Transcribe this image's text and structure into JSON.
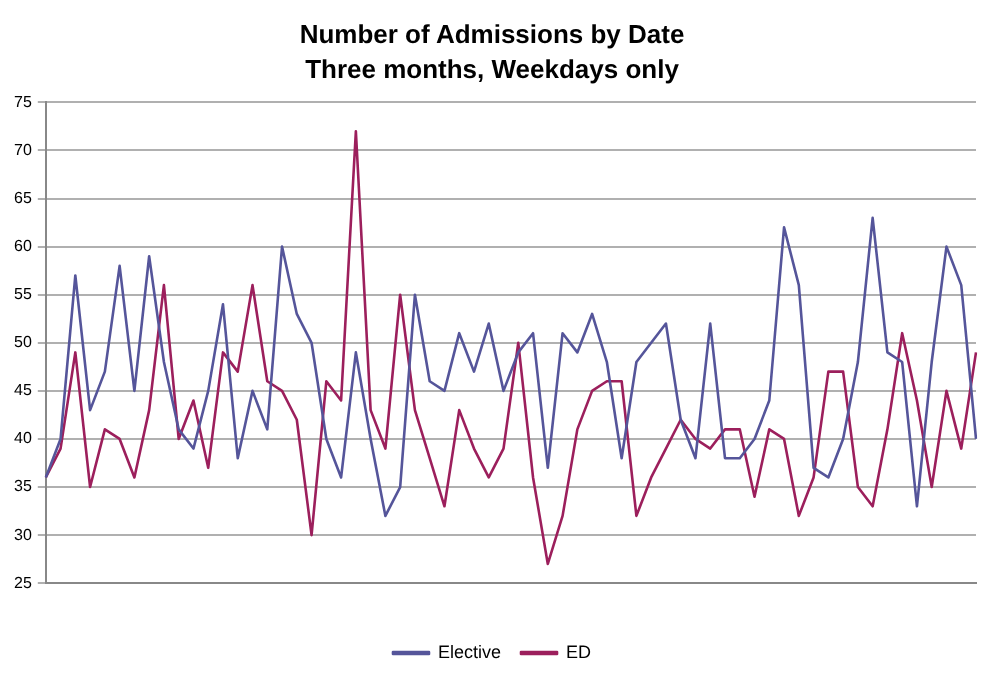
{
  "chart_data": {
    "type": "line",
    "title": "Number of Admissions by Date",
    "subtitle": "Three months, Weekdays only",
    "categories": [
      null,
      null,
      null,
      null,
      null,
      null,
      null,
      null,
      null,
      null,
      null,
      null,
      null,
      null,
      null,
      null,
      null,
      null,
      null,
      null,
      null,
      null,
      null,
      null,
      null,
      null,
      null,
      null,
      null,
      null,
      null,
      null,
      null,
      null,
      null,
      null,
      null,
      null,
      null,
      null,
      null,
      null,
      null,
      null,
      null,
      null,
      null,
      null,
      null,
      null,
      null,
      null,
      null,
      null,
      null,
      null,
      null,
      null,
      null,
      null,
      null,
      null,
      null,
      null
    ],
    "series": [
      {
        "name": "Elective",
        "color": "#55559a",
        "values": [
          36,
          40,
          57,
          43,
          47,
          58,
          45,
          59,
          48,
          41,
          39,
          45,
          54,
          38,
          45,
          41,
          60,
          53,
          50,
          40,
          36,
          49,
          40,
          32,
          35,
          55,
          46,
          45,
          51,
          47,
          52,
          45,
          49,
          51,
          37,
          51,
          49,
          53,
          48,
          38,
          48,
          50,
          52,
          42,
          38,
          52,
          38,
          38,
          40,
          44,
          62,
          56,
          37,
          36,
          40,
          48,
          63,
          49,
          48,
          33,
          48,
          60,
          56,
          40
        ]
      },
      {
        "name": "ED",
        "color": "#9c1f5c",
        "values": [
          36,
          39,
          49,
          35,
          41,
          40,
          36,
          43,
          56,
          40,
          44,
          37,
          49,
          47,
          56,
          46,
          45,
          42,
          30,
          46,
          44,
          72,
          43,
          39,
          55,
          43,
          38,
          33,
          43,
          39,
          36,
          39,
          50,
          36,
          27,
          32,
          41,
          45,
          46,
          46,
          32,
          36,
          39,
          42,
          40,
          39,
          41,
          41,
          34,
          41,
          40,
          32,
          36,
          47,
          47,
          35,
          33,
          41,
          51,
          44,
          35,
          45,
          39,
          49
        ]
      }
    ],
    "ylim": [
      25,
      75
    ],
    "yticks": [
      25,
      30,
      35,
      40,
      45,
      50,
      55,
      60,
      65,
      70,
      75
    ],
    "grid": "y",
    "legend": "bottom",
    "marker": "none",
    "line_style": "solid"
  }
}
